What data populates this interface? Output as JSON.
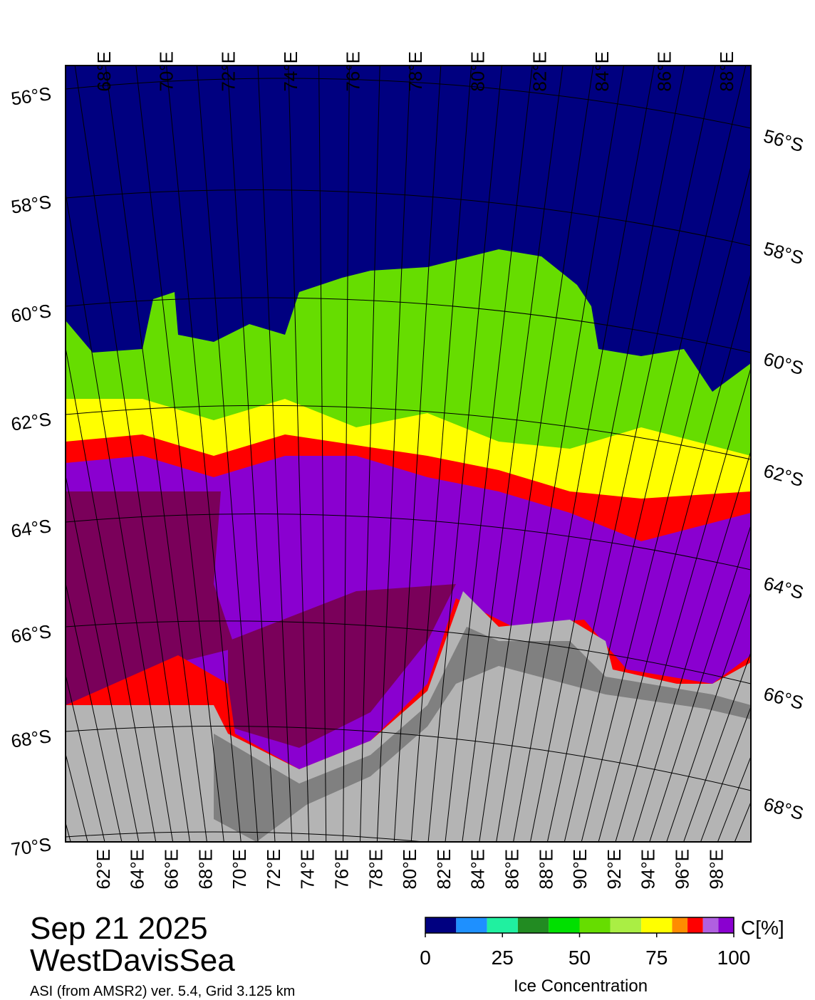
{
  "header": {
    "date": "Sep 21 2025",
    "region": "WestDavisSea",
    "source": "ASI (from AMSR2) ver. 5.4,  Grid 3.125 km"
  },
  "map": {
    "lon_labels_top": [
      "68°E",
      "70°E",
      "72°E",
      "74°E",
      "76°E",
      "78°E",
      "80°E",
      "82°E",
      "84°E",
      "86°E",
      "88°E"
    ],
    "lat_labels_left": [
      "56°S",
      "58°S",
      "60°S",
      "62°S",
      "64°S",
      "66°S",
      "68°S",
      "70°S"
    ],
    "lat_labels_right": [
      "56°S",
      "58°S",
      "60°S",
      "62°S",
      "64°S",
      "66°S",
      "68°S"
    ],
    "lon_labels_bottom": [
      "62°E",
      "64°E",
      "66°E",
      "68°E",
      "70°E",
      "72°E",
      "74°E",
      "76°E",
      "78°E",
      "80°E",
      "82°E",
      "84°E",
      "86°E",
      "88°E",
      "90°E",
      "92°E",
      "94°E",
      "96°E",
      "98°E"
    ]
  },
  "colorbar": {
    "label": "Ice Concentration",
    "unit": "C[%]",
    "range": [
      0,
      100
    ],
    "ticks": [
      0,
      25,
      50,
      75,
      100
    ],
    "bins": [
      0,
      10,
      20,
      30,
      40,
      50,
      60,
      70,
      80,
      85,
      90,
      95,
      100
    ],
    "colors": [
      "#000080",
      "#1e90ff",
      "#20f0a0",
      "#228b22",
      "#00e000",
      "#66dd00",
      "#aaee44",
      "#ffff00",
      "#ff8c00",
      "#ff0000",
      "#b060e0",
      "#8a00d0"
    ]
  }
}
